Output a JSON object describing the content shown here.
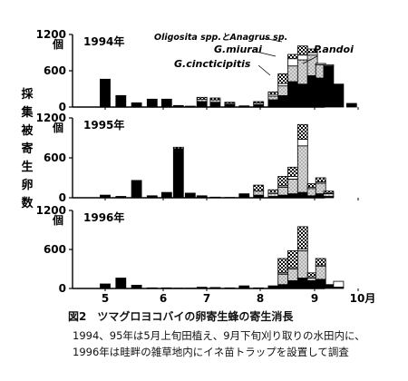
{
  "chart_data": {
    "type": "bar",
    "stacked": true,
    "ylabel": "採集被寄生卵数",
    "xlabel_ticks": [
      "5",
      "6",
      "7",
      "8",
      "9",
      "10月"
    ],
    "unit": "個",
    "legend": [
      "Oligosita spp.とAnagrus sp.",
      "G.miurai",
      "G.cincticipitis",
      "P.andoi"
    ],
    "series_styles": {
      "P.andoi": "solid black",
      "G.cincticipitis": "light gray stipple",
      "G.miurai": "white",
      "Oligosita spp.とAnagrus sp.": "black/white checker"
    },
    "panels": [
      {
        "year_label": "1994年",
        "y_ticks": [
          "1200",
          "600",
          "0"
        ],
        "ylim": [
          0,
          1200
        ],
        "bars": [
          {
            "x": 5.0,
            "P.andoi": 460
          },
          {
            "x": 5.27,
            "P.andoi": 190
          },
          {
            "x": 5.54,
            "P.andoi": 70
          },
          {
            "x": 5.81,
            "P.andoi": 130
          },
          {
            "x": 6.08,
            "P.andoi": 130
          },
          {
            "x": 6.35,
            "P.andoi": 25
          },
          {
            "x": 6.62,
            "P.andoi": 15
          },
          {
            "x": 6.89,
            "P.andoi": 90,
            "G.cincticipitis": 40,
            "G.miurai": 0,
            "Oligosita": 30
          },
          {
            "x": 7.16,
            "P.andoi": 80,
            "G.cincticipitis": 40,
            "G.miurai": 0,
            "Oligosita": 30
          },
          {
            "x": 7.43,
            "P.andoi": 40,
            "G.cincticipitis": 20,
            "G.miurai": 0,
            "Oligosita": 20
          },
          {
            "x": 7.7,
            "P.andoi": 20
          },
          {
            "x": 7.97,
            "P.andoi": 40,
            "G.cincticipitis": 30,
            "G.miurai": 0,
            "Oligosita": 20
          },
          {
            "x": 8.24,
            "P.andoi": 120,
            "G.cincticipitis": 60,
            "G.miurai": 30,
            "Oligosita": 40
          },
          {
            "x": 8.42,
            "P.andoi": 190,
            "G.cincticipitis": 160,
            "G.miurai": 40,
            "Oligosita": 160
          },
          {
            "x": 8.6,
            "P.andoi": 420,
            "G.cincticipitis": 260,
            "G.miurai": 120,
            "Oligosita": 70
          },
          {
            "x": 8.78,
            "P.andoi": 380,
            "G.cincticipitis": 400,
            "G.miurai": 80,
            "Oligosita": 150
          },
          {
            "x": 8.96,
            "P.andoi": 520,
            "G.cincticipitis": 340,
            "G.miurai": 40,
            "Oligosita": 60
          },
          {
            "x": 9.14,
            "P.andoi": 480,
            "G.cincticipitis": 220,
            "G.miurai": 20,
            "Oligosita": 0
          },
          {
            "x": 9.32,
            "P.andoi": 680,
            "G.cincticipitis": 20,
            "G.miurai": 0,
            "Oligosita": 0
          },
          {
            "x": 9.55,
            "P.andoi": 380
          },
          {
            "x": 9.85,
            "P.andoi": 60
          }
        ]
      },
      {
        "year_label": "1995年",
        "y_ticks": [
          "1200",
          "600",
          "0"
        ],
        "ylim": [
          0,
          1200
        ],
        "bars": [
          {
            "x": 5.0,
            "P.andoi": 40
          },
          {
            "x": 5.27,
            "P.andoi": 20
          },
          {
            "x": 5.54,
            "P.andoi": 260
          },
          {
            "x": 5.81,
            "P.andoi": 30
          },
          {
            "x": 6.08,
            "P.andoi": 80
          },
          {
            "x": 6.35,
            "P.andoi": 740,
            "Oligosita": 20
          },
          {
            "x": 6.62,
            "P.andoi": 70
          },
          {
            "x": 6.89,
            "P.andoi": 30
          },
          {
            "x": 7.16,
            "P.andoi": 10
          },
          {
            "x": 7.43,
            "P.andoi": 5
          },
          {
            "x": 7.7,
            "P.andoi": 60
          },
          {
            "x": 7.97,
            "P.andoi": 40,
            "G.cincticipitis": 60,
            "G.miurai": 0,
            "Oligosita": 90
          },
          {
            "x": 8.24,
            "P.andoi": 20,
            "G.cincticipitis": 40,
            "G.miurai": 20,
            "Oligosita": 40
          },
          {
            "x": 8.42,
            "P.andoi": 40,
            "G.cincticipitis": 120,
            "G.miurai": 20,
            "Oligosita": 140
          },
          {
            "x": 8.6,
            "P.andoi": 60,
            "G.cincticipitis": 220,
            "G.miurai": 40,
            "Oligosita": 140
          },
          {
            "x": 8.78,
            "P.andoi": 80,
            "G.cincticipitis": 700,
            "G.miurai": 100,
            "Oligosita": 220
          },
          {
            "x": 8.96,
            "P.andoi": 30,
            "G.cincticipitis": 110,
            "G.miurai": 20,
            "Oligosita": 50
          },
          {
            "x": 9.14,
            "P.andoi": 60,
            "G.cincticipitis": 160,
            "G.miurai": 20,
            "Oligosita": 60
          },
          {
            "x": 9.32,
            "P.andoi": 20,
            "G.cincticipitis": 40,
            "G.miurai": 10,
            "Oligosita": 30
          }
        ]
      },
      {
        "year_label": "1996年",
        "y_ticks": [
          "1200",
          "600",
          "0"
        ],
        "ylim": [
          0,
          1200
        ],
        "bars": [
          {
            "x": 5.0,
            "P.andoi": 70
          },
          {
            "x": 5.27,
            "P.andoi": 160
          },
          {
            "x": 5.54,
            "P.andoi": 50
          },
          {
            "x": 5.81,
            "P.andoi": 10
          },
          {
            "x": 6.08,
            "P.andoi": 10
          },
          {
            "x": 6.35,
            "P.andoi": 5
          },
          {
            "x": 6.62,
            "P.andoi": 5
          },
          {
            "x": 6.89,
            "P.andoi": 20
          },
          {
            "x": 7.16,
            "P.andoi": 15
          },
          {
            "x": 7.43,
            "P.andoi": 10
          },
          {
            "x": 7.7,
            "P.andoi": 40
          },
          {
            "x": 7.97,
            "P.andoi": 10
          },
          {
            "x": 8.24,
            "P.andoi": 40
          },
          {
            "x": 8.42,
            "P.andoi": 60,
            "G.cincticipitis": 160,
            "G.miurai": 20,
            "Oligosita": 220
          },
          {
            "x": 8.6,
            "P.andoi": 120,
            "G.cincticipitis": 180,
            "G.miurai": 20,
            "Oligosita": 260
          },
          {
            "x": 8.78,
            "P.andoi": 160,
            "G.cincticipitis": 420,
            "G.miurai": 30,
            "Oligosita": 340
          },
          {
            "x": 8.96,
            "P.andoi": 120,
            "G.cincticipitis": 40,
            "G.miurai": 20,
            "Oligosita": 60
          },
          {
            "x": 9.14,
            "P.andoi": 140,
            "G.cincticipitis": 200,
            "G.miurai": 20,
            "Oligosita": 100
          },
          {
            "x": 9.32,
            "P.andoi": 60
          },
          {
            "x": 9.55,
            "P.andoi": 20,
            "G.miurai": 90
          }
        ]
      }
    ]
  },
  "caption": {
    "title": "図2　ツマグロヨコバイの卵寄生蜂の寄生消長",
    "line1": "1994、95年は5月上旬田植え、9月下旬刈り取りの水田内に、",
    "line2": "1996年は畦畔の雑草地内にイネ苗トラップを設置して調査"
  }
}
